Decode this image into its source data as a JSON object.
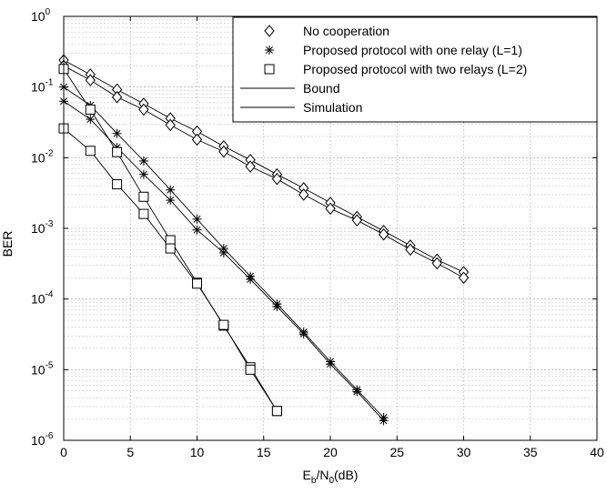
{
  "chart_data": {
    "type": "line",
    "title": "",
    "xlabel": {
      "base": "E",
      "sub1": "b",
      "mid": "/N",
      "sub2": "0",
      "tail": "(dB)"
    },
    "ylabel": "BER",
    "xlim": [
      0,
      40
    ],
    "ylim": [
      1e-06,
      1
    ],
    "yscale": "log",
    "grid": true,
    "legend_position": "top-right",
    "x_ticks": [
      "0",
      "5",
      "10",
      "15",
      "20",
      "25",
      "30",
      "35",
      "40"
    ],
    "y_ticks": [
      {
        "base": "10",
        "exp": "-6"
      },
      {
        "base": "10",
        "exp": "-5"
      },
      {
        "base": "10",
        "exp": "-4"
      },
      {
        "base": "10",
        "exp": "-3"
      },
      {
        "base": "10",
        "exp": "-2"
      },
      {
        "base": "10",
        "exp": "-1"
      },
      {
        "base": "10",
        "exp": "0"
      }
    ],
    "legend": [
      {
        "label": "No cooperation",
        "marker": "diamond"
      },
      {
        "label": "Proposed protocol with one relay (L=1)",
        "marker": "star"
      },
      {
        "label": "Proposed protocol with two relays (L=2)",
        "marker": "square"
      },
      {
        "label": "Bound",
        "marker": "line"
      },
      {
        "label": "Simulation",
        "marker": "line"
      }
    ],
    "series": [
      {
        "group": "L0",
        "kind": "bound",
        "marker": "diamond",
        "x": [
          0,
          2,
          4,
          6,
          8,
          10,
          12,
          14,
          16,
          18,
          20,
          22,
          24,
          26,
          28,
          30
        ],
        "y": [
          0.24,
          0.15,
          0.092,
          0.058,
          0.036,
          0.0235,
          0.0145,
          0.0093,
          0.0058,
          0.0037,
          0.0023,
          0.00145,
          0.00092,
          0.00057,
          0.00036,
          0.00024
        ]
      },
      {
        "group": "L0",
        "kind": "simulation",
        "marker": "diamond",
        "x": [
          0,
          2,
          4,
          6,
          8,
          10,
          12,
          14,
          16,
          18,
          20,
          22,
          24,
          26,
          28,
          30
        ],
        "y": [
          0.2,
          0.125,
          0.072,
          0.048,
          0.029,
          0.018,
          0.0122,
          0.0075,
          0.005,
          0.003,
          0.0019,
          0.0013,
          0.00082,
          0.0005,
          0.00032,
          0.0002
        ]
      },
      {
        "group": "L1",
        "kind": "bound",
        "marker": "star",
        "x": [
          0,
          2,
          4,
          6,
          8,
          10,
          12,
          14,
          16,
          18,
          20,
          22,
          24
        ],
        "y": [
          0.1,
          0.055,
          0.022,
          0.009,
          0.0035,
          0.00135,
          0.00052,
          0.00021,
          8.5e-05,
          3.4e-05,
          1.3e-05,
          5.2e-06,
          2.1e-06
        ]
      },
      {
        "group": "L1",
        "kind": "simulation",
        "marker": "star",
        "x": [
          0,
          2,
          4,
          6,
          8,
          10,
          12,
          14,
          16,
          18,
          20,
          22,
          24
        ],
        "y": [
          0.063,
          0.035,
          0.014,
          0.0058,
          0.0025,
          0.00095,
          0.00045,
          0.00019,
          7.8e-05,
          3.2e-05,
          1.2e-05,
          4.9e-06,
          1.9e-06
        ]
      },
      {
        "group": "L2",
        "kind": "bound",
        "marker": "square",
        "x": [
          0,
          2,
          4,
          6,
          8,
          10,
          12,
          14,
          16
        ],
        "y": [
          0.18,
          0.048,
          0.012,
          0.0028,
          0.00068,
          0.00017,
          4.2e-05,
          1.08e-05,
          2.6e-06
        ]
      },
      {
        "group": "L2",
        "kind": "simulation",
        "marker": "square",
        "x": [
          0,
          2,
          4,
          6,
          8,
          10,
          12,
          14,
          16
        ],
        "y": [
          0.026,
          0.0125,
          0.0042,
          0.0016,
          0.00052,
          0.000165,
          4.3e-05,
          1e-05,
          2.6e-06
        ]
      }
    ]
  }
}
